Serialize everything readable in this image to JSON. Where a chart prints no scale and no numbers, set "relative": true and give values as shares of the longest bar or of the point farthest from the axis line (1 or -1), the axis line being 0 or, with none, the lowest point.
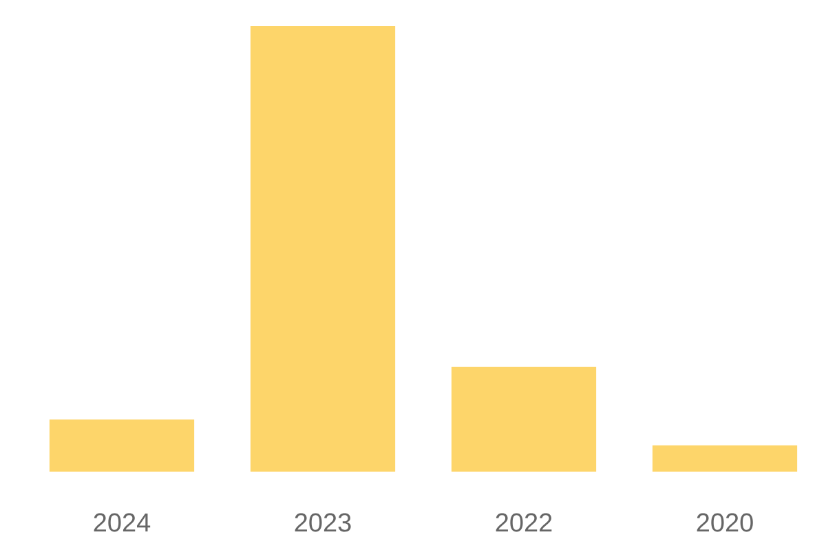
{
  "chart_data": {
    "type": "bar",
    "relative": true,
    "categories": [
      "2024",
      "2023",
      "2022",
      "2020"
    ],
    "values": [
      0.117,
      1,
      0.235,
      0.059
    ],
    "color": "#fdd56a"
  }
}
